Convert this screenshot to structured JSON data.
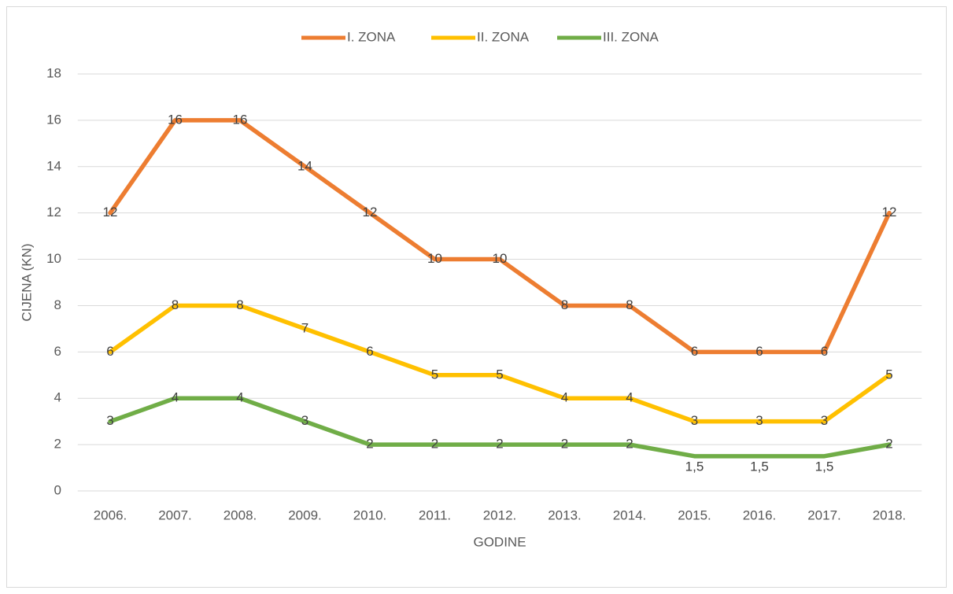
{
  "chart_data": {
    "type": "line",
    "categories": [
      "2006.",
      "2007.",
      "2008.",
      "2009.",
      "2010.",
      "2011.",
      "2012.",
      "2013.",
      "2014.",
      "2015.",
      "2016.",
      "2017.",
      "2018."
    ],
    "series": [
      {
        "name": "I. ZONA",
        "color": "#ed7d31",
        "values": [
          12,
          16,
          16,
          14,
          12,
          10,
          10,
          8,
          8,
          6,
          6,
          6,
          12
        ]
      },
      {
        "name": "II. ZONA",
        "color": "#ffc000",
        "values": [
          6,
          8,
          8,
          7,
          6,
          5,
          5,
          4,
          4,
          3,
          3,
          3,
          5
        ]
      },
      {
        "name": "III. ZONA",
        "color": "#70ad47",
        "values": [
          3,
          4,
          4,
          3,
          2,
          2,
          2,
          2,
          2,
          1.5,
          1.5,
          1.5,
          2
        ],
        "value_labels": [
          "3",
          "4",
          "4",
          "3",
          "2",
          "2",
          "2",
          "2",
          "2",
          "1,5",
          "1,5",
          "1,5",
          "2"
        ]
      }
    ],
    "xlabel": "GODINE",
    "ylabel": "CIJENA (KN)",
    "ylim": [
      0,
      18
    ],
    "yticks": [
      0,
      2,
      4,
      6,
      8,
      10,
      12,
      14,
      16,
      18
    ],
    "grid": true,
    "legend": "top"
  }
}
